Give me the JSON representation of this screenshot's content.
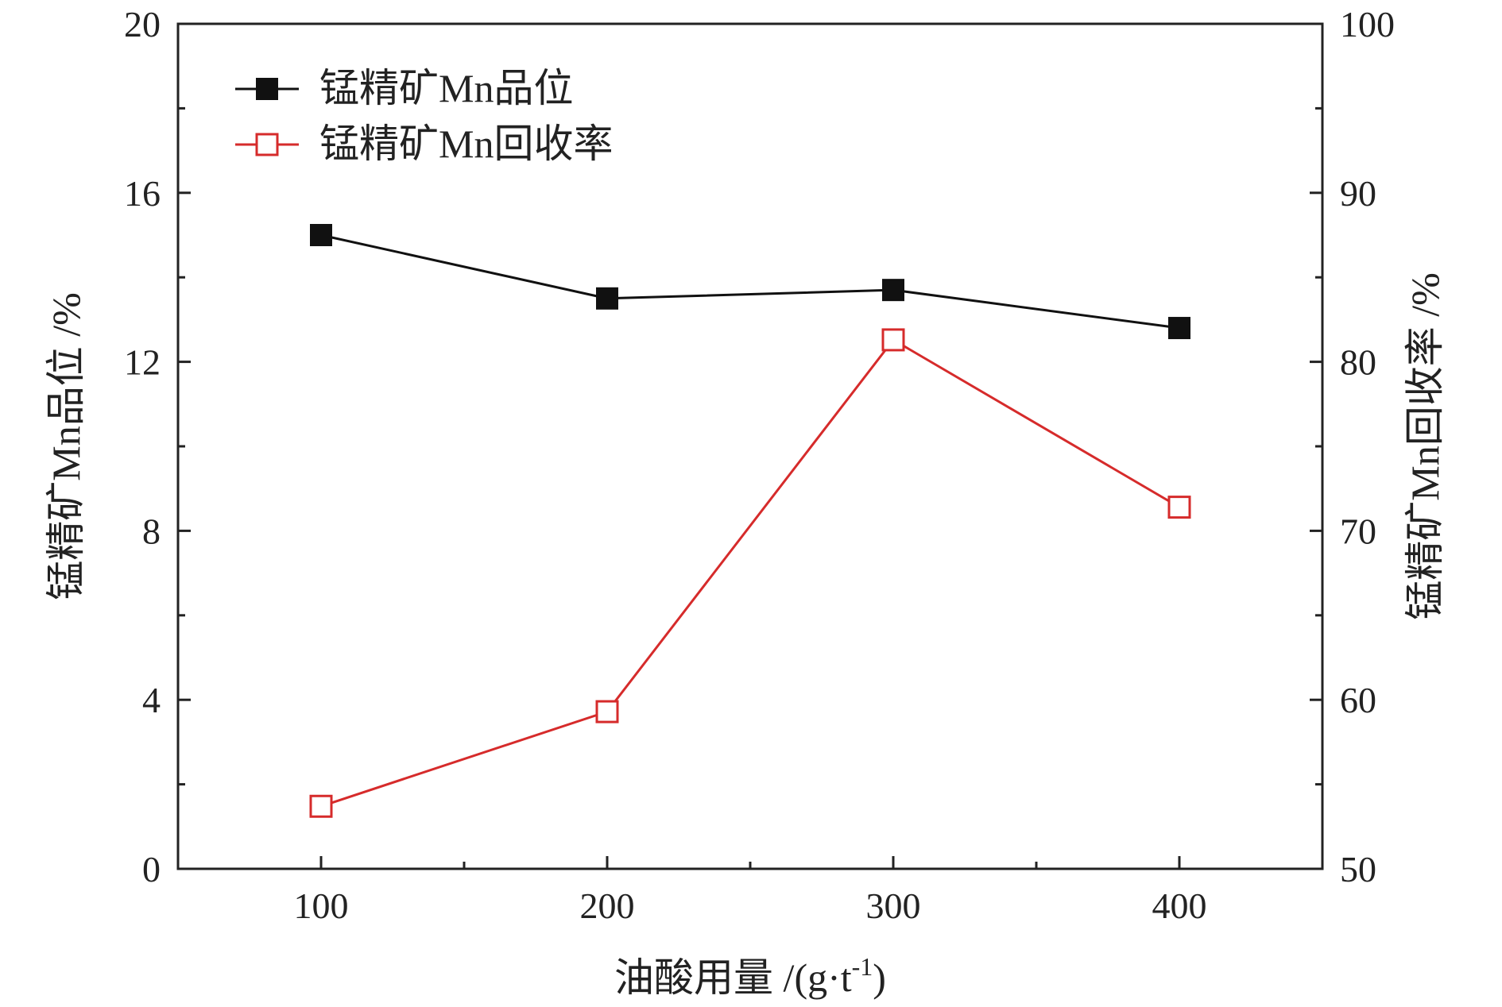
{
  "chart_data": {
    "type": "line",
    "x": [
      100,
      200,
      300,
      400
    ],
    "xlabel": "油酸用量 /(g·t",
    "xlabel_sup": "-1",
    "xlabel_close": ")",
    "ylabel_left": "锰精矿Mn品位 /%",
    "ylabel_right": "锰精矿Mn回收率 /%",
    "xlim": [
      50,
      450
    ],
    "xticks": [
      100,
      200,
      300,
      400
    ],
    "ylim_left": [
      0,
      20
    ],
    "yticks_left": [
      0,
      4,
      8,
      12,
      16,
      20
    ],
    "ylim_right": [
      50,
      100
    ],
    "yticks_right": [
      50,
      60,
      70,
      80,
      90,
      100
    ],
    "grid": false,
    "legend_position": "top-left",
    "series": [
      {
        "name": "锰精矿Mn品位",
        "axis": "left",
        "values": [
          15.0,
          13.5,
          13.7,
          12.8
        ],
        "color": "#111111",
        "marker": "filled-square"
      },
      {
        "name": "锰精矿Mn回收率",
        "axis": "right",
        "values": [
          53.7,
          59.3,
          81.3,
          71.4
        ],
        "color": "#d62b2b",
        "marker": "open-square"
      }
    ]
  }
}
